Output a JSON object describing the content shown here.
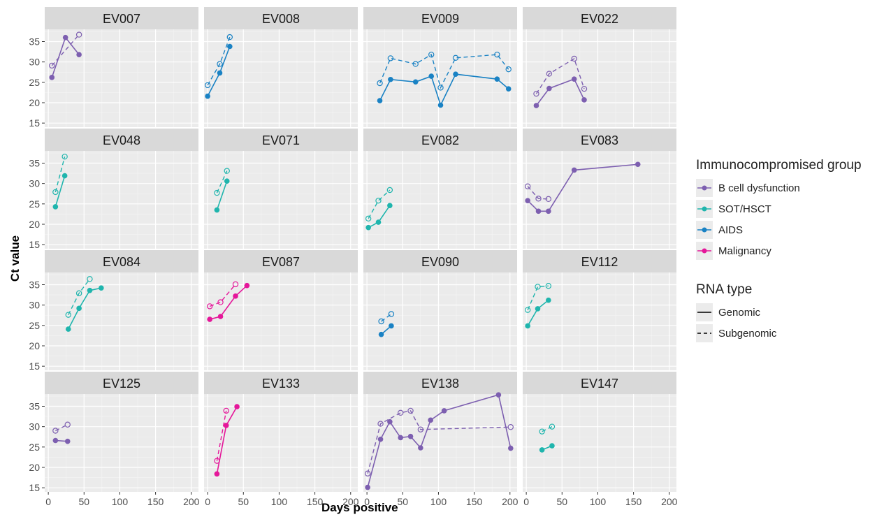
{
  "chart_data": {
    "type": "line",
    "xlabel": "Days positive",
    "ylabel": "Ct value",
    "xlim": [
      -5,
      210
    ],
    "ylim": [
      14,
      38
    ],
    "x_ticks": [
      0,
      50,
      100,
      150,
      200
    ],
    "y_ticks": [
      15,
      20,
      25,
      30,
      35
    ],
    "grid": true,
    "legend_position": "right",
    "groups": [
      {
        "name": "B cell dysfunction",
        "color": "#7d5fb0"
      },
      {
        "name": "SOT/HSCT",
        "color": "#1fb5ad"
      },
      {
        "name": "AIDS",
        "color": "#1a82c4"
      },
      {
        "name": "Malignancy",
        "color": "#e5179a"
      }
    ],
    "rna_types": [
      {
        "name": "Genomic",
        "linetype": "solid",
        "marker": "filled"
      },
      {
        "name": "Subgenomic",
        "linetype": "dashed",
        "marker": "open"
      }
    ],
    "legend_titles": {
      "group": "Immunocompromised group",
      "rna": "RNA type"
    },
    "panels": [
      {
        "id": "EV007",
        "group": 0,
        "genomic": [
          [
            5,
            26.2
          ],
          [
            24,
            36.0
          ],
          [
            43,
            31.8
          ]
        ],
        "subgenomic": [
          [
            5,
            29.1
          ],
          [
            43,
            36.7
          ]
        ]
      },
      {
        "id": "EV008",
        "group": 2,
        "genomic": [
          [
            0,
            21.6
          ],
          [
            17,
            27.3
          ],
          [
            31,
            33.8
          ]
        ],
        "subgenomic": [
          [
            0,
            24.3
          ],
          [
            17,
            29.5
          ],
          [
            31,
            36.1
          ]
        ]
      },
      {
        "id": "EV009",
        "group": 2,
        "genomic": [
          [
            18,
            20.5
          ],
          [
            33,
            25.7
          ],
          [
            68,
            25.1
          ],
          [
            90,
            26.5
          ],
          [
            103,
            19.4
          ],
          [
            124,
            27.0
          ],
          [
            182,
            25.8
          ],
          [
            198,
            23.4
          ]
        ],
        "subgenomic": [
          [
            18,
            24.8
          ],
          [
            33,
            30.9
          ],
          [
            68,
            29.5
          ],
          [
            90,
            31.8
          ],
          [
            103,
            23.7
          ],
          [
            124,
            31.0
          ],
          [
            182,
            31.8
          ],
          [
            198,
            28.2
          ]
        ]
      },
      {
        "id": "EV022",
        "group": 0,
        "genomic": [
          [
            14,
            19.3
          ],
          [
            32,
            23.5
          ],
          [
            67,
            25.8
          ],
          [
            81,
            20.7
          ]
        ],
        "subgenomic": [
          [
            14,
            22.2
          ],
          [
            32,
            27.1
          ],
          [
            67,
            30.8
          ],
          [
            81,
            23.4
          ]
        ]
      },
      {
        "id": "EV048",
        "group": 1,
        "genomic": [
          [
            10,
            24.3
          ],
          [
            23,
            31.9
          ]
        ],
        "subgenomic": [
          [
            10,
            27.9
          ],
          [
            23,
            36.6
          ]
        ]
      },
      {
        "id": "EV071",
        "group": 1,
        "genomic": [
          [
            13,
            23.5
          ],
          [
            27,
            30.6
          ]
        ],
        "subgenomic": [
          [
            13,
            27.7
          ],
          [
            27,
            33.1
          ]
        ]
      },
      {
        "id": "EV082",
        "group": 1,
        "genomic": [
          [
            2,
            19.2
          ],
          [
            16,
            20.5
          ],
          [
            32,
            24.6
          ]
        ],
        "subgenomic": [
          [
            2,
            21.4
          ],
          [
            16,
            25.8
          ],
          [
            32,
            28.4
          ]
        ]
      },
      {
        "id": "EV083",
        "group": 0,
        "genomic": [
          [
            2,
            25.8
          ],
          [
            17,
            23.2
          ],
          [
            31,
            23.2
          ],
          [
            67,
            33.3
          ],
          [
            156,
            34.7
          ]
        ],
        "subgenomic": [
          [
            2,
            29.3
          ],
          [
            17,
            26.3
          ],
          [
            31,
            26.2
          ]
        ]
      },
      {
        "id": "EV084",
        "group": 1,
        "genomic": [
          [
            28,
            24.1
          ],
          [
            43,
            29.2
          ],
          [
            58,
            33.6
          ],
          [
            74,
            34.2
          ]
        ],
        "subgenomic": [
          [
            28,
            27.6
          ],
          [
            43,
            32.9
          ],
          [
            58,
            36.4
          ]
        ]
      },
      {
        "id": "EV087",
        "group": 3,
        "genomic": [
          [
            3,
            26.5
          ],
          [
            18,
            27.2
          ],
          [
            39,
            32.2
          ],
          [
            55,
            34.8
          ]
        ],
        "subgenomic": [
          [
            3,
            29.7
          ],
          [
            18,
            30.7
          ],
          [
            39,
            35.1
          ]
        ]
      },
      {
        "id": "EV090",
        "group": 2,
        "genomic": [
          [
            20,
            22.8
          ],
          [
            34,
            24.9
          ]
        ],
        "subgenomic": [
          [
            20,
            26.0
          ],
          [
            34,
            27.8
          ]
        ]
      },
      {
        "id": "EV112",
        "group": 1,
        "genomic": [
          [
            2,
            24.9
          ],
          [
            16,
            29.1
          ],
          [
            31,
            31.2
          ]
        ],
        "subgenomic": [
          [
            2,
            28.8
          ],
          [
            16,
            34.5
          ],
          [
            31,
            34.7
          ]
        ]
      },
      {
        "id": "EV125",
        "group": 0,
        "genomic": [
          [
            10,
            26.6
          ],
          [
            27,
            26.4
          ]
        ],
        "subgenomic": [
          [
            10,
            29.0
          ],
          [
            27,
            30.5
          ]
        ]
      },
      {
        "id": "EV133",
        "group": 3,
        "genomic": [
          [
            13,
            18.4
          ],
          [
            26,
            30.3
          ],
          [
            41,
            34.9
          ]
        ],
        "subgenomic": [
          [
            13,
            21.6
          ],
          [
            26,
            33.9
          ]
        ]
      },
      {
        "id": "EV138",
        "group": 0,
        "genomic": [
          [
            1,
            15.1
          ],
          [
            19,
            26.9
          ],
          [
            32,
            31.2
          ],
          [
            47,
            27.3
          ],
          [
            61,
            27.6
          ],
          [
            75,
            24.8
          ],
          [
            89,
            31.6
          ],
          [
            108,
            33.9
          ],
          [
            184,
            37.8
          ],
          [
            201,
            24.7
          ]
        ],
        "subgenomic": [
          [
            1,
            18.5
          ],
          [
            19,
            30.7
          ],
          [
            47,
            33.4
          ],
          [
            61,
            33.9
          ],
          [
            75,
            29.3
          ],
          [
            201,
            29.9
          ]
        ]
      },
      {
        "id": "EV147",
        "group": 1,
        "genomic": [
          [
            22,
            24.3
          ],
          [
            36,
            25.3
          ]
        ],
        "subgenomic": [
          [
            22,
            28.8
          ],
          [
            36,
            30.0
          ]
        ]
      }
    ]
  }
}
